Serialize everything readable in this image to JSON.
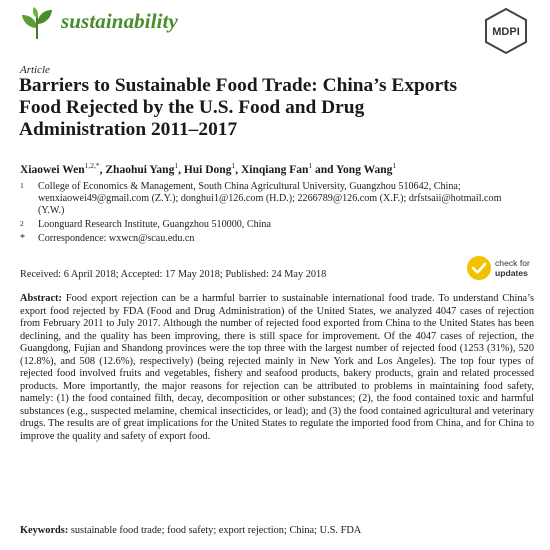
{
  "journal": {
    "name": "sustainability",
    "logo_icon": "leaf-icon"
  },
  "publisher": {
    "name": "MDPI"
  },
  "article_type": "Article",
  "title": "Barriers to Sustainable Food Trade: China’s Exports Food Rejected by the U.S. Food and Drug Administration 2011–2017",
  "authors": [
    {
      "name": "Xiaowei Wen",
      "marks": "1,2,*",
      "sep": ", "
    },
    {
      "name": "Zhaohui Yang",
      "marks": "1",
      "sep": ", "
    },
    {
      "name": "Hui Dong",
      "marks": "1",
      "sep": ", "
    },
    {
      "name": "Xinqiang Fan",
      "marks": "1",
      "sep": " and "
    },
    {
      "name": "Yong Wang",
      "marks": "1",
      "sep": ""
    }
  ],
  "affiliations": [
    {
      "marker": "1",
      "text": "College of Economics & Management, South China Agricultural University, Guangzhou 510642, China; wenxiaowei49@gmail.com (Z.Y.); donghui1@126.com (H.D.); 2266789@126.com (X.F.); drfstsaii@hotmail.com (Y.W.)"
    },
    {
      "marker": "2",
      "text": "Loonguard Research Institute, Guangzhou 510000, China"
    },
    {
      "marker": "*",
      "text": "Correspondence: wxwcn@scau.edu.cn"
    }
  ],
  "dates": "Received: 6 April 2018; Accepted: 17 May 2018; Published: 24 May 2018",
  "check_updates": {
    "line1": "check for",
    "line2": "updates"
  },
  "abstract": {
    "label": "Abstract:",
    "text": "Food export rejection can be a harmful barrier to sustainable international food trade. To understand China’s export food rejected by FDA (Food and Drug Administration) of the United States, we analyzed 4047 cases of rejection from February 2011 to July 2017. Although the number of rejected food exported from China to the United States has been declining, and the quality has been improving, there is still space for improvement. Of the 4047 cases of rejection, the Guangdong, Fujian and Shandong provinces were the top three with the largest number of rejected food (1253 (31%), 520 (12.8%), and 508 (12.6%), respectively) (being rejected mainly in New York and Los Angeles). The top four types of rejected food involved fruits and vegetables, fishery and seafood products, bakery products, grain and related processed products. More importantly, the major reasons for rejection can be attributed to problems in maintaining food safety, namely: (1) the food contained filth, decay, decomposition or other substances; (2), the food contained toxic and harmful substances (e.g., suspected melamine, chemical insecticides, or lead); and (3) the food contained agricultural and veterinary drugs. The results are of great implications for the United States to regulate the imported food from China, and for China to improve the quality and safety of export food."
  },
  "keywords": {
    "label": "Keywords:",
    "text": "sustainable food trade; food safety; export rejection; China; U.S. FDA"
  }
}
